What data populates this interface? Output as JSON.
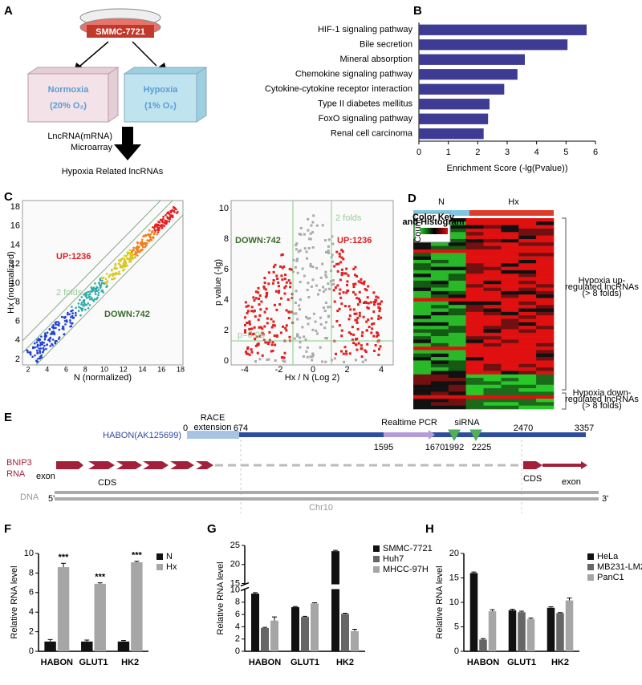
{
  "panel_a": {
    "label": "A",
    "dish": "SMMC-7721",
    "normoxia": {
      "title": "Normoxia",
      "condition": "(20% O₂)"
    },
    "hypoxia": {
      "title": "Hypoxia",
      "condition": "(1% O₂)"
    },
    "method": [
      "LncRNA(mRNA)",
      "Microarray"
    ],
    "result": "Hypoxia Related lncRNAs"
  },
  "panel_c": {
    "label": "C",
    "scatter": {
      "ylabel": "Hx (normalized)",
      "xlabel": "N (normalized)",
      "up": "UP:1236",
      "down": "DOWN:742",
      "folds": "2 folds",
      "xticks": [
        "2",
        "4",
        "6",
        "8",
        "10",
        "12",
        "14",
        "16",
        "18"
      ],
      "yticks": [
        "2",
        "4",
        "6",
        "8",
        "10",
        "12",
        "14",
        "16",
        "18"
      ]
    },
    "volcano": {
      "ylabel": "p value (-lg)",
      "xlabel": "Hx / N  (Log 2)",
      "up": "UP:1236",
      "down": "DOWN:742",
      "folds": "2 folds",
      "p": "p=0.05",
      "xticks": [
        "-4",
        "-2",
        "0",
        "2",
        "4"
      ],
      "yticks": [
        "0",
        "2",
        "4",
        "6",
        "8",
        "10"
      ]
    }
  },
  "panel_d": {
    "label": "D",
    "groups": [
      "N",
      "Hx"
    ],
    "color_key": [
      "Color Key",
      "and Histogram"
    ],
    "count": "Count",
    "up": [
      "Hypoxia up-",
      "regulated lncRNAs",
      "(> 8 folds)"
    ],
    "down": [
      "Hypoxia down-",
      "regulated lncRNAs",
      "(> 8 folds)"
    ]
  },
  "panel_e": {
    "label": "E",
    "race": [
      "RACE",
      "extension"
    ],
    "gene": "HABON(AK125699)",
    "positions": {
      "start": "0",
      "race_end": "674",
      "pcr_start": "1595",
      "pcr_end": "1670",
      "si1": "1992",
      "si2": "2225",
      "cds": "2470",
      "end": "3357"
    },
    "pcr": "Realtime PCR",
    "sirna": "siRNA",
    "bnip3": [
      "BNIP3",
      "RNA"
    ],
    "exon1": "exon",
    "cds1": "CDS",
    "cds2": "CDS",
    "exon2": "exon",
    "dna": "DNA",
    "five": "5'",
    "three": "3'",
    "chr": "Chr10"
  },
  "chart_data": [
    {
      "type": "bar",
      "orientation": "horizontal",
      "label": "B",
      "categories": [
        "HIF-1 signaling pathway",
        "Bile secretion",
        "Mineral absorption",
        "Chemokine signaling pathway",
        "Cytokine-cytokine receptor interaction",
        "Type II diabetes mellitus",
        "FoxO signaling pathway",
        "Renal cell carcinoma"
      ],
      "values": [
        5.7,
        5.05,
        3.6,
        3.35,
        2.9,
        2.4,
        2.35,
        2.2
      ],
      "color": "#3d3b93",
      "xlim": [
        0,
        6
      ],
      "xticks": [
        0,
        1,
        2,
        3,
        4,
        5,
        6
      ],
      "xlabel": "Enrichment Score (-lg(Pvalue))"
    },
    {
      "type": "bar",
      "label": "F",
      "categories": [
        "HABON",
        "GLUT1",
        "HK2"
      ],
      "series": [
        {
          "name": "N",
          "color": "#111111",
          "values": [
            1,
            1,
            1
          ],
          "errors": [
            0.2,
            0.15,
            0.1
          ]
        },
        {
          "name": "Hx",
          "color": "#a6a6a6",
          "values": [
            8.6,
            6.9,
            9.1
          ],
          "errors": [
            0.4,
            0.1,
            0.1
          ]
        }
      ],
      "annotations": [
        "***",
        "***",
        "***"
      ],
      "ylim": [
        0,
        10
      ],
      "yticks": [
        0,
        2,
        4,
        6,
        8,
        10
      ],
      "ylabel": "Relative RNA level",
      "legend": "right"
    },
    {
      "type": "bar",
      "label": "G",
      "categories": [
        "HABON",
        "GLUT1",
        "HK2"
      ],
      "series": [
        {
          "name": "SMMC-7721",
          "color": "#111111",
          "values": [
            9.4,
            7.2,
            23.5
          ],
          "errors": [
            0.15,
            0.1,
            0.2
          ]
        },
        {
          "name": "Huh7",
          "color": "#666666",
          "values": [
            3.8,
            5.6,
            6.1
          ],
          "errors": [
            0.1,
            0.1,
            0.1
          ]
        },
        {
          "name": "MHCC-97H",
          "color": "#a6a6a6",
          "values": [
            5.0,
            7.8,
            3.3
          ],
          "errors": [
            0.6,
            0.1,
            0.3
          ]
        }
      ],
      "ylim": [
        0,
        25
      ],
      "ybreak": [
        10,
        15
      ],
      "yticks": [
        0,
        2,
        4,
        6,
        8,
        10,
        15,
        20,
        25
      ],
      "ylabel": "Relative RNA level",
      "legend": "right"
    },
    {
      "type": "bar",
      "label": "H",
      "categories": [
        "HABON",
        "GLUT1",
        "HK2"
      ],
      "series": [
        {
          "name": "HeLa",
          "color": "#111111",
          "values": [
            16,
            8.4,
            8.9
          ],
          "errors": [
            0.2,
            0.2,
            0.2
          ]
        },
        {
          "name": "MB231-LM2",
          "color": "#666666",
          "values": [
            2.4,
            8.0,
            7.8
          ],
          "errors": [
            0.2,
            0.2,
            0.1
          ]
        },
        {
          "name": "PanC1",
          "color": "#a6a6a6",
          "values": [
            8.2,
            6.6,
            10.4
          ],
          "errors": [
            0.3,
            0.2,
            0.5
          ]
        }
      ],
      "ylim": [
        0,
        20
      ],
      "yticks": [
        0,
        5,
        10,
        15,
        20
      ],
      "ylabel": "Relative RNA level",
      "legend": "right"
    }
  ]
}
